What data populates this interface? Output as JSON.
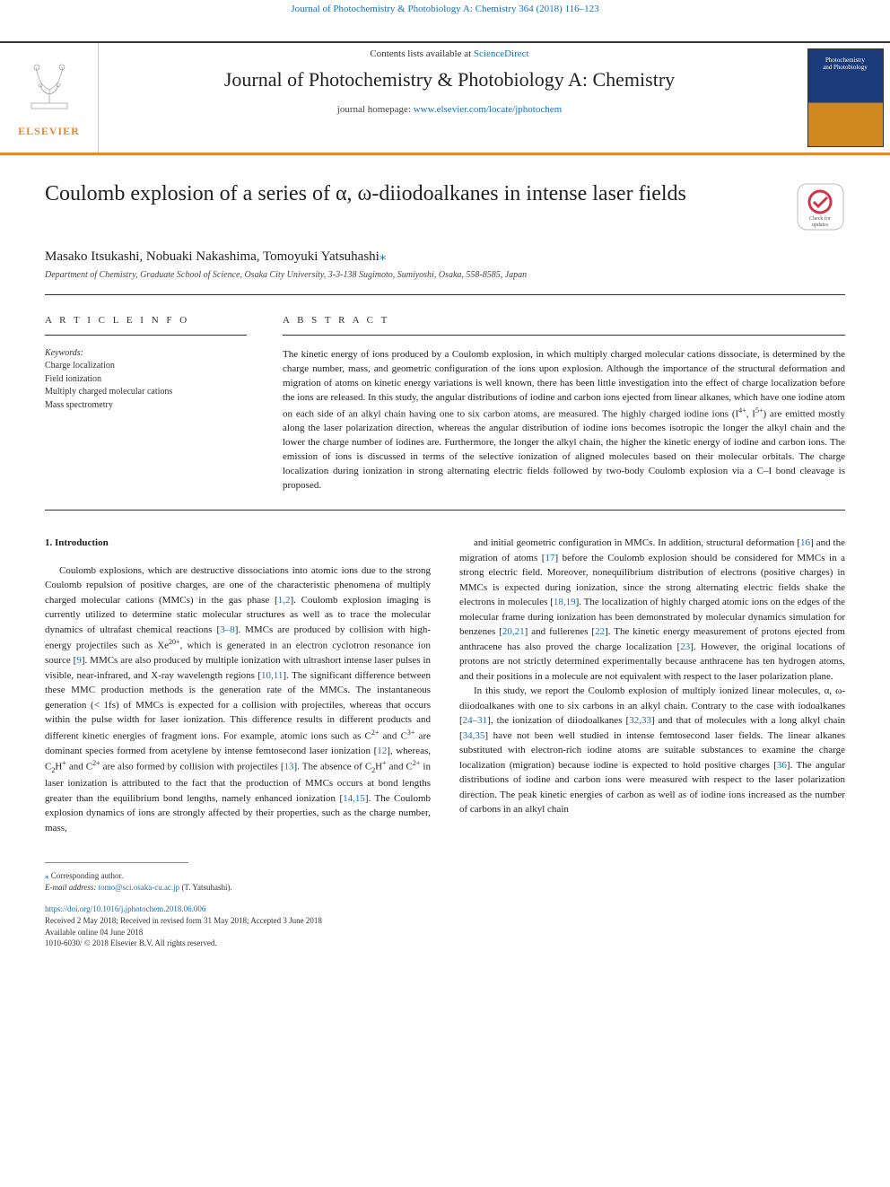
{
  "citation_top": "Journal of Photochemistry & Photobiology A: Chemistry 364 (2018) 116–123",
  "header": {
    "contents_prefix": "Contents lists available at ",
    "contents_link": "ScienceDirect",
    "journal_name": "Journal of Photochemistry & Photobiology A: Chemistry",
    "homepage_prefix": "journal homepage: ",
    "homepage_link": "www.elsevier.com/locate/jphotochem",
    "elsevier_label": "ELSEVIER",
    "cover_line1": "Photochemistry",
    "cover_line2": "and Photobiology"
  },
  "title": "Coulomb explosion of a series of α, ω-diiodoalkanes in intense laser fields",
  "updates_badge": "Check for updates",
  "authors": "Masako Itsukashi, Nobuaki Nakashima, Tomoyuki Yatsuhashi",
  "author_mark": "⁎",
  "affiliation": "Department of Chemistry, Graduate School of Science, Osaka City University, 3-3-138 Sugimoto, Sumiyoshi, Osaka, 558-8585, Japan",
  "info": {
    "section_label": "A R T I C L E  I N F O",
    "keywords_head": "Keywords:",
    "keywords": [
      "Charge localization",
      "Field ionization",
      "Multiply charged molecular cations",
      "Mass spectrometry"
    ]
  },
  "abstract": {
    "section_label": "A B S T R A C T",
    "text": "The kinetic energy of ions produced by a Coulomb explosion, in which multiply charged molecular cations dissociate, is determined by the charge number, mass, and geometric configuration of the ions upon explosion. Although the importance of the structural deformation and migration of atoms on kinetic energy variations is well known, there has been little investigation into the effect of charge localization before the ions are released. In this study, the angular distributions of iodine and carbon ions ejected from linear alkanes, which have one iodine atom on each side of an alkyl chain having one to six carbon atoms, are measured. The highly charged iodine ions (I4+, I5+) are emitted mostly along the laser polarization direction, whereas the angular distribution of iodine ions becomes isotropic the longer the alkyl chain and the lower the charge number of iodines are. Furthermore, the longer the alkyl chain, the higher the kinetic energy of iodine and carbon ions. The emission of ions is discussed in terms of the selective ionization of aligned molecules based on their molecular orbitals. The charge localization during ionization in strong alternating electric fields followed by two-body Coulomb explosion via a C–I bond cleavage is proposed."
  },
  "body": {
    "heading": "1. Introduction",
    "col1_para": "Coulomb explosions, which are destructive dissociations into atomic ions due to the strong Coulomb repulsion of positive charges, are one of the characteristic phenomena of multiply charged molecular cations (MMCs) in the gas phase [1,2]. Coulomb explosion imaging is currently utilized to determine static molecular structures as well as to trace the molecular dynamics of ultrafast chemical reactions [3–8]. MMCs are produced by collision with high-energy projectiles such as Xe20+, which is generated in an electron cyclotron resonance ion source [9]. MMCs are also produced by multiple ionization with ultrashort intense laser pulses in visible, near-infrared, and X-ray wavelength regions [10,11]. The significant difference between these MMC production methods is the generation rate of the MMCs. The instantaneous generation (< 1fs) of MMCs is expected for a collision with projectiles, whereas that occurs within the pulse width for laser ionization. This difference results in different products and different kinetic energies of fragment ions. For example, atomic ions such as C2+ and C3+ are dominant species formed from acetylene by intense femtosecond laser ionization [12], whereas, C2H+ and C2+ are also formed by collision with projectiles [13]. The absence of C2H+ and C2+ in laser ionization is attributed to the fact that the production of MMCs occurs at bond lengths greater than the equilibrium bond lengths, namely enhanced ionization [14,15]. The Coulomb explosion dynamics of ions are strongly affected by their properties, such as the charge number, mass,",
    "col2_para1": "and initial geometric configuration in MMCs. In addition, structural deformation [16] and the migration of atoms [17] before the Coulomb explosion should be considered for MMCs in a strong electric field. Moreover, nonequilibrium distribution of electrons (positive charges) in MMCs is expected during ionization, since the strong alternating electric fields shake the electrons in molecules [18,19]. The localization of highly charged atomic ions on the edges of the molecular frame during ionization has been demonstrated by molecular dynamics simulation for benzenes [20,21] and fullerenes [22]. The kinetic energy measurement of protons ejected from anthracene has also proved the charge localization [23]. However, the original locations of protons are not strictly determined experimentally because anthracene has ten hydrogen atoms, and their positions in a molecule are not equivalent with respect to the laser polarization plane.",
    "col2_para2": "In this study, we report the Coulomb explosion of multiply ionized linear molecules, α, ω-diiodoalkanes with one to six carbons in an alkyl chain. Contrary to the case with iodoalkanes [24–31], the ionization of diiodoalkanes [32,33] and that of molecules with a long alkyl chain [34,35] have not been well studied in intense femtosecond laser fields. The linear alkanes substituted with electron-rich iodine atoms are suitable substances to examine the charge localization (migration) because iodine is expected to hold positive charges [36]. The angular distributions of iodine and carbon ions were measured with respect to the laser polarization direction. The peak kinetic energies of carbon as well as of iodine ions increased as the number of carbons in an alkyl chain"
  },
  "footer": {
    "corr_mark": "⁎",
    "corr_text": " Corresponding author.",
    "email_label": "E-mail address: ",
    "email": "tomo@sci.osaka-cu.ac.jp",
    "email_suffix": " (T. Yatsuhashi).",
    "doi": "https://doi.org/10.1016/j.jphotochem.2018.06.006",
    "received": "Received 2 May 2018; Received in revised form 31 May 2018; Accepted 3 June 2018",
    "available": "Available online 04 June 2018",
    "copyright": "1010-6030/ © 2018 Elsevier B.V. All rights reserved."
  }
}
